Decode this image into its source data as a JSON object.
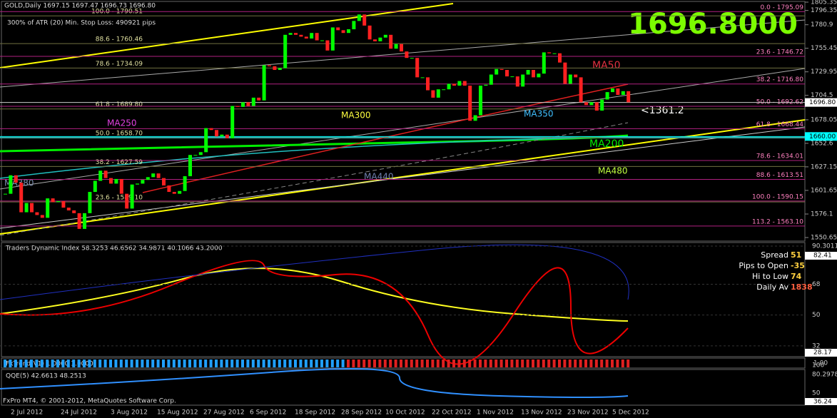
{
  "header": {
    "symbol": "GOLD,Daily  1697.15 1697.47 1696.73 1696.80",
    "atr": "300% of ATR (20)    Min. Stop Loss:  490921 pips",
    "big_price": "1696.8000"
  },
  "price_pane": {
    "ylim": [
      1550.65,
      1805.35
    ],
    "yticks": [
      1805.35,
      1796.35,
      1780.9,
      1755.45,
      1729.95,
      1704.5,
      1678.05,
      1652.6,
      1627.15,
      1601.65,
      1576.1,
      1550.65
    ],
    "current": {
      "value": 1696.8,
      "label": "1696.80"
    },
    "level": {
      "value": 1660,
      "label": "1660.00"
    },
    "closes": [
      1598,
      1618,
      1610,
      1578,
      1588,
      1578,
      1575,
      1572,
      1593,
      1589,
      1590,
      1583,
      1580,
      1577,
      1560,
      1577,
      1600,
      1612,
      1623,
      1615,
      1609,
      1614,
      1598,
      1582,
      1608,
      1609,
      1613,
      1616,
      1620,
      1615,
      1607,
      1600,
      1598,
      1601,
      1617,
      1640,
      1640,
      1643,
      1669,
      1667,
      1660,
      1662,
      1658,
      1693,
      1692,
      1697,
      1693,
      1702,
      1699,
      1737,
      1736,
      1732,
      1734,
      1770,
      1772,
      1770,
      1768,
      1766,
      1772,
      1764,
      1764,
      1753,
      1778,
      1775,
      1772,
      1776,
      1785,
      1792,
      1780,
      1765,
      1763,
      1767,
      1770,
      1755,
      1760,
      1752,
      1745,
      1745,
      1724,
      1724,
      1710,
      1702,
      1711,
      1711,
      1717,
      1715,
      1720,
      1715,
      1677,
      1683,
      1715,
      1716,
      1727,
      1733,
      1732,
      1725,
      1725,
      1714,
      1727,
      1732,
      1724,
      1728,
      1751,
      1750,
      1750,
      1740,
      1717,
      1727,
      1724,
      1697,
      1694,
      1697,
      1688,
      1700,
      1708,
      1712,
      1705,
      1709,
      1697
    ],
    "fib_left": [
      {
        "label": "100.0 - 1790.51",
        "value": 1790.51
      },
      {
        "label": "88.6 - 1760.46",
        "value": 1760.46
      },
      {
        "label": "78.6 - 1734.09",
        "value": 1734.09
      },
      {
        "label": "61.8 - 1689.80",
        "value": 1689.8
      },
      {
        "label": "50.0 - 1658.70",
        "value": 1658.7
      },
      {
        "label": "38.2 - 1627.59",
        "value": 1627.59
      },
      {
        "label": "23.6 - 1589.10",
        "value": 1589.1
      }
    ],
    "fib_right": [
      {
        "label": "0.0 - 1795.09",
        "value": 1795.09
      },
      {
        "label": "23.6 - 1746.72",
        "value": 1746.72
      },
      {
        "label": "38.2 - 1716.80",
        "value": 1716.8
      },
      {
        "label": "50.0 - 1692.62",
        "value": 1692.62
      },
      {
        "label": "61.8 - 1668.44",
        "value": 1668.44
      },
      {
        "label": "78.6 - 1634.01",
        "value": 1634.01
      },
      {
        "label": "88.6 - 1613.51",
        "value": 1613.51
      },
      {
        "label": "100.0 - 1590.15",
        "value": 1590.15
      },
      {
        "label": "113.2 - 1563.10",
        "value": 1563.1
      }
    ],
    "ma_labels": {
      "ma50": "MA50",
      "ma300": "MA300",
      "ma250": "MA250",
      "ma350": "MA350",
      "ma200": "MA200",
      "ma480": "MA480",
      "ma440": "MA440",
      "ma380": "MA380"
    },
    "note": "<1361.2"
  },
  "tdi_pane": {
    "title": "Traders Dynamic Index 58.3253 46.6562 34.9871 40.1066 43.2000",
    "ylim": [
      28.17,
      90.3011
    ],
    "yticks": [
      90.3011,
      68,
      50,
      32
    ],
    "hi": "82.41",
    "lo": "28.17",
    "info": [
      {
        "label": "Spread",
        "value": "51"
      },
      {
        "label": "Pips to Open",
        "value": "-35"
      },
      {
        "label": "Hi to Low",
        "value": "74"
      },
      {
        "label": "Daily Av",
        "value": "1838"
      }
    ]
  },
  "trend_pane": {
    "title": "FxTrend(V1) 1.0000 1.0000",
    "ytick": "1.00"
  },
  "qqe_pane": {
    "title": "QQE(5) 42.6613 48.2513",
    "yticks": [
      "100",
      "80.2978",
      "50"
    ],
    "lo": "36.24"
  },
  "footer": "FxPro MT4, © 2001-2012, MetaQuotes Software Corp.",
  "dates": [
    "2 Jul 2012",
    "24 Jul 2012",
    "3 Aug 2012",
    "15 Aug 2012",
    "27 Aug 2012",
    "6 Sep 2012",
    "18 Sep 2012",
    "28 Sep 2012",
    "10 Oct 2012",
    "22 Oct 2012",
    "1 Nov 2012",
    "13 Nov 2012",
    "23 Nov 2012",
    "5 Dec 2012"
  ]
}
